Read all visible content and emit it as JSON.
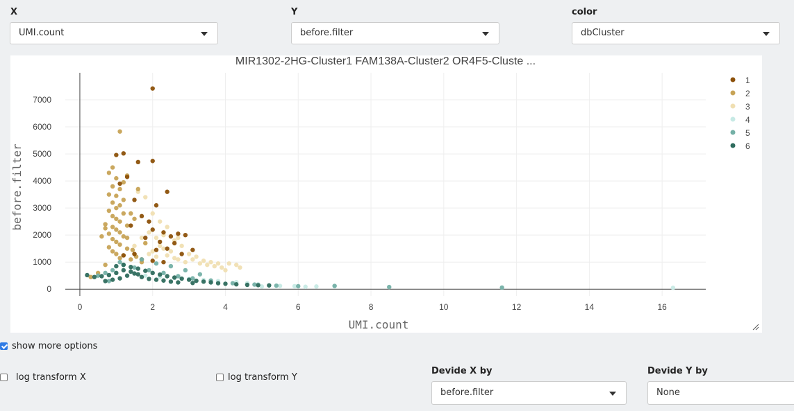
{
  "controls": {
    "x": {
      "label": "X",
      "value": "UMI.count"
    },
    "y": {
      "label": "Y",
      "value": "before.filter"
    },
    "color": {
      "label": "color",
      "value": "dbCluster"
    }
  },
  "options": {
    "show_more": {
      "label": "show more options",
      "checked": true
    },
    "log_x": {
      "label": "log transform X",
      "checked": false
    },
    "log_y": {
      "label": "log transform Y",
      "checked": false
    },
    "divide_x": {
      "label": "Devide X by",
      "value": "before.filter"
    },
    "divide_y": {
      "label": "Devide Y by",
      "value": "None"
    }
  },
  "chart_data": {
    "type": "scatter",
    "title": "MIR1302-2HG-Cluster1 FAM138A-Cluster2 OR4F5-Cluste ...",
    "xlabel": "UMI.count",
    "ylabel": "before.filter",
    "xlim": [
      -0.4,
      17.2
    ],
    "ylim": [
      -250,
      8000
    ],
    "x_ticks": [
      0,
      2,
      4,
      6,
      8,
      10,
      12,
      14,
      16
    ],
    "y_ticks": [
      0,
      1000,
      2000,
      3000,
      4000,
      5000,
      6000,
      7000
    ],
    "grid": true,
    "legend_position": "top-right",
    "series": [
      {
        "name": "1",
        "color": "#8c510a",
        "points": [
          [
            2.0,
            7420
          ],
          [
            1.0,
            4960
          ],
          [
            1.2,
            5020
          ],
          [
            1.6,
            4700
          ],
          [
            2.0,
            4740
          ],
          [
            1.3,
            4150
          ],
          [
            1.1,
            3900
          ],
          [
            1.5,
            3300
          ],
          [
            2.4,
            3600
          ],
          [
            2.1,
            3100
          ],
          [
            1.7,
            2700
          ],
          [
            1.9,
            2500
          ],
          [
            1.4,
            2350
          ],
          [
            2.0,
            2200
          ],
          [
            2.3,
            2100
          ],
          [
            2.5,
            1950
          ],
          [
            2.7,
            2050
          ],
          [
            2.9,
            2000
          ],
          [
            1.8,
            1900
          ],
          [
            2.2,
            1750
          ],
          [
            2.6,
            1700
          ],
          [
            2.4,
            1500
          ],
          [
            2.1,
            1450
          ],
          [
            3.1,
            1450
          ],
          [
            1.5,
            1300
          ],
          [
            1.2,
            1250
          ],
          [
            1.7,
            1100
          ],
          [
            2.0,
            1050
          ],
          [
            2.3,
            1000
          ],
          [
            2.8,
            1300
          ]
        ]
      },
      {
        "name": "2",
        "color": "#c7a356",
        "points": [
          [
            1.1,
            5830
          ],
          [
            0.9,
            4500
          ],
          [
            0.8,
            4300
          ],
          [
            1.0,
            4100
          ],
          [
            1.3,
            4200
          ],
          [
            1.2,
            3950
          ],
          [
            0.9,
            3800
          ],
          [
            1.1,
            3700
          ],
          [
            0.8,
            3500
          ],
          [
            1.0,
            3450
          ],
          [
            1.2,
            3300
          ],
          [
            0.9,
            3200
          ],
          [
            1.1,
            3100
          ],
          [
            1.0,
            3000
          ],
          [
            0.8,
            2900
          ],
          [
            1.2,
            2800
          ],
          [
            0.9,
            2700
          ],
          [
            1.0,
            2600
          ],
          [
            1.1,
            2500
          ],
          [
            0.7,
            2400
          ],
          [
            1.3,
            2350
          ],
          [
            0.9,
            2300
          ],
          [
            1.0,
            2200
          ],
          [
            1.1,
            2100
          ],
          [
            0.8,
            2050
          ],
          [
            1.2,
            1950
          ],
          [
            0.9,
            1850
          ],
          [
            1.0,
            1750
          ],
          [
            1.1,
            1650
          ],
          [
            0.8,
            1550
          ],
          [
            1.3,
            1500
          ],
          [
            0.9,
            1400
          ],
          [
            1.0,
            1300
          ],
          [
            1.2,
            1250
          ],
          [
            1.1,
            1150
          ],
          [
            1.4,
            1100
          ],
          [
            1.5,
            1300
          ],
          [
            1.3,
            1900
          ],
          [
            1.5,
            2600
          ],
          [
            1.6,
            3700
          ],
          [
            0.7,
            2250
          ],
          [
            0.6,
            1950
          ],
          [
            1.45,
            1450
          ],
          [
            1.55,
            1200
          ],
          [
            1.7,
            1000
          ],
          [
            0.3,
            450
          ],
          [
            0.5,
            600
          ],
          [
            0.7,
            900
          ],
          [
            1.8,
            1700
          ],
          [
            1.4,
            2800
          ]
        ]
      },
      {
        "name": "3",
        "color": "#f0dfb2",
        "points": [
          [
            1.6,
            3600
          ],
          [
            1.8,
            3400
          ],
          [
            2.0,
            2800
          ],
          [
            2.2,
            2500
          ],
          [
            2.4,
            2300
          ],
          [
            1.9,
            2100
          ],
          [
            2.1,
            1900
          ],
          [
            2.6,
            1800
          ],
          [
            2.8,
            1600
          ],
          [
            2.3,
            1500
          ],
          [
            2.5,
            1400
          ],
          [
            3.0,
            1300
          ],
          [
            3.2,
            1200
          ],
          [
            2.7,
            1100
          ],
          [
            2.9,
            1000
          ],
          [
            3.3,
            950
          ],
          [
            3.5,
            900
          ],
          [
            3.7,
            850
          ],
          [
            3.9,
            800
          ],
          [
            4.1,
            950
          ],
          [
            4.3,
            900
          ],
          [
            4.4,
            800
          ],
          [
            3.1,
            1100
          ],
          [
            2.2,
            1600
          ],
          [
            1.7,
            1900
          ],
          [
            2.0,
            1400
          ],
          [
            1.8,
            1700
          ],
          [
            2.4,
            1250
          ],
          [
            2.6,
            1150
          ],
          [
            3.4,
            1050
          ],
          [
            2.1,
            1200
          ],
          [
            1.5,
            1600
          ],
          [
            1.9,
            1300
          ],
          [
            3.6,
            1000
          ],
          [
            3.8,
            950
          ],
          [
            4.0,
            700
          ],
          [
            2.3,
            2000
          ],
          [
            2.7,
            1900
          ]
        ]
      },
      {
        "name": "4",
        "color": "#c7eae5",
        "points": [
          [
            4.6,
            220
          ],
          [
            4.9,
            180
          ],
          [
            5.2,
            140
          ],
          [
            5.5,
            120
          ],
          [
            5.9,
            110
          ],
          [
            6.5,
            100
          ],
          [
            7.0,
            110
          ],
          [
            16.3,
            50
          ],
          [
            4.3,
            260
          ],
          [
            3.8,
            300
          ],
          [
            3.4,
            340
          ],
          [
            3.0,
            380
          ],
          [
            2.6,
            420
          ],
          [
            2.2,
            460
          ],
          [
            1.8,
            500
          ],
          [
            5.0,
            100
          ],
          [
            6.2,
            90
          ]
        ]
      },
      {
        "name": "5",
        "color": "#74b0a6",
        "points": [
          [
            7.0,
            120
          ],
          [
            8.5,
            80
          ],
          [
            11.6,
            60
          ],
          [
            6.0,
            110
          ],
          [
            5.4,
            130
          ],
          [
            4.8,
            170
          ],
          [
            4.2,
            220
          ],
          [
            3.6,
            320
          ],
          [
            3.1,
            400
          ],
          [
            2.7,
            480
          ],
          [
            2.3,
            600
          ],
          [
            1.9,
            700
          ],
          [
            1.5,
            800
          ],
          [
            1.2,
            900
          ],
          [
            0.9,
            700
          ],
          [
            1.1,
            1000
          ],
          [
            1.7,
            1100
          ],
          [
            2.1,
            950
          ],
          [
            2.5,
            850
          ],
          [
            2.9,
            700
          ],
          [
            3.3,
            550
          ],
          [
            0.5,
            500
          ],
          [
            0.7,
            600
          ],
          [
            0.8,
            300
          ]
        ]
      },
      {
        "name": "6",
        "color": "#2e6b5d",
        "points": [
          [
            0.2,
            520
          ],
          [
            0.4,
            450
          ],
          [
            0.6,
            480
          ],
          [
            0.8,
            520
          ],
          [
            1.0,
            600
          ],
          [
            1.2,
            700
          ],
          [
            1.4,
            820
          ],
          [
            1.6,
            760
          ],
          [
            1.8,
            680
          ],
          [
            2.0,
            600
          ],
          [
            2.2,
            540
          ],
          [
            2.4,
            480
          ],
          [
            2.6,
            430
          ],
          [
            2.8,
            390
          ],
          [
            3.0,
            350
          ],
          [
            3.2,
            310
          ],
          [
            3.4,
            280
          ],
          [
            3.6,
            250
          ],
          [
            3.8,
            220
          ],
          [
            4.0,
            200
          ],
          [
            4.3,
            180
          ],
          [
            4.6,
            160
          ],
          [
            4.9,
            150
          ],
          [
            5.2,
            140
          ],
          [
            1.1,
            400
          ],
          [
            1.3,
            500
          ],
          [
            1.5,
            580
          ],
          [
            1.7,
            450
          ],
          [
            1.9,
            380
          ],
          [
            2.1,
            350
          ],
          [
            2.3,
            320
          ],
          [
            0.9,
            350
          ],
          [
            0.7,
            300
          ],
          [
            1.0,
            850
          ],
          [
            1.2,
            900
          ],
          [
            1.4,
            650
          ],
          [
            1.6,
            550
          ],
          [
            2.5,
            280
          ],
          [
            2.7,
            250
          ],
          [
            3.1,
            230
          ]
        ]
      }
    ]
  }
}
